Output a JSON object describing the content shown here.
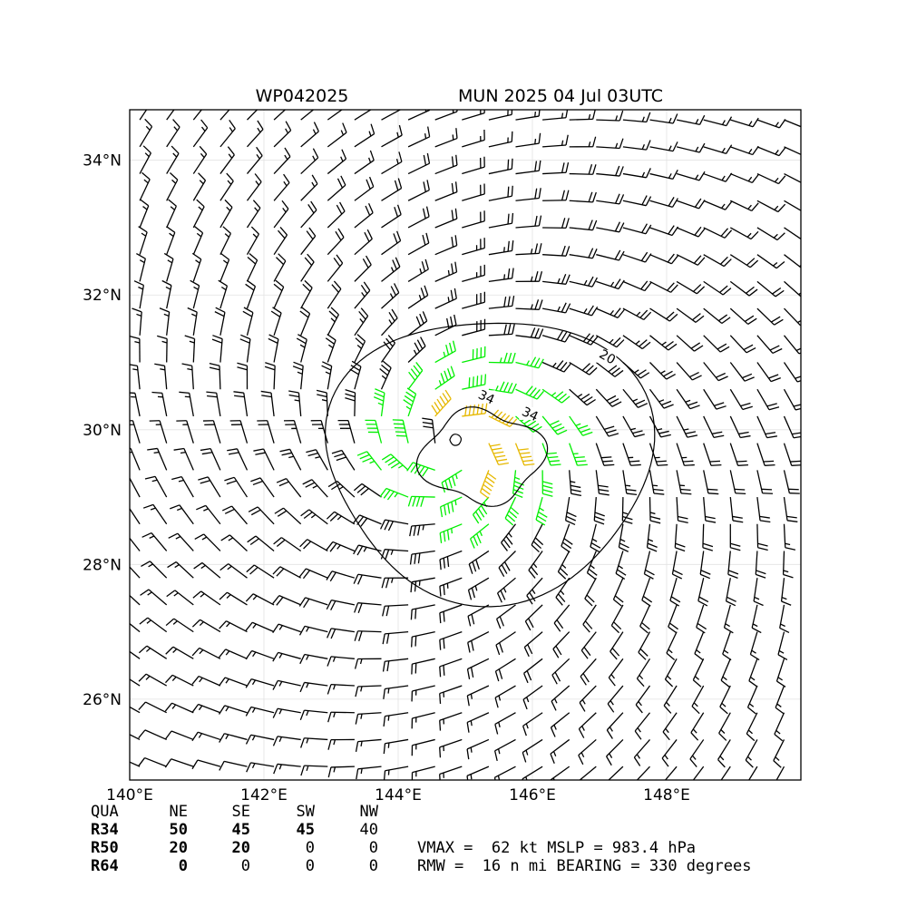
{
  "header": {
    "storm_id": "WP042025",
    "storm_info": "MUN 2025 04 Jul 03UTC"
  },
  "chart_data": {
    "type": "wind_barb_map",
    "storm_id": "WP042025",
    "x_ticks": [
      "140°E",
      "142°E",
      "144°E",
      "146°E",
      "148°E"
    ],
    "x_tick_values": [
      140,
      142,
      144,
      146,
      148
    ],
    "y_ticks": [
      "26°N",
      "28°N",
      "30°N",
      "32°N",
      "34°N"
    ],
    "y_tick_values": [
      26,
      28,
      30,
      32,
      34
    ],
    "xlim": [
      140,
      150
    ],
    "ylim": [
      24.8,
      34.75
    ],
    "grid": true,
    "center": {
      "lon": 144.85,
      "lat": 29.75
    },
    "contours": [
      {
        "level": "20",
        "label_lon": 147.1,
        "label_lat": 31.05
      },
      {
        "level": "34",
        "label_lon": 145.3,
        "label_lat": 30.45
      },
      {
        "level": "34",
        "label_lon": 145.95,
        "label_lat": 30.2
      }
    ],
    "barb_colors": {
      "below_34kt": "#000000",
      "34_to_49kt": "#00ee00",
      "50_to_63kt": "#e6b800"
    },
    "vmax_kt": 62,
    "mslp_hpa": 983.4,
    "rmw_nmi": 16,
    "bearing_deg": 330
  },
  "table": {
    "headers": [
      "QUA",
      "NE",
      "SE",
      "SW",
      "NW"
    ],
    "rows": [
      [
        "R34",
        "50",
        "45",
        "45",
        "40"
      ],
      [
        "R50",
        "20",
        "20",
        "0",
        "0"
      ],
      [
        "R64",
        "0",
        "0",
        "0",
        "0"
      ]
    ]
  },
  "summary": {
    "line1": "VMAX =  62 kt MSLP = 983.4 hPa",
    "line2": "RMW =  16 n mi BEARING = 330 degrees"
  }
}
